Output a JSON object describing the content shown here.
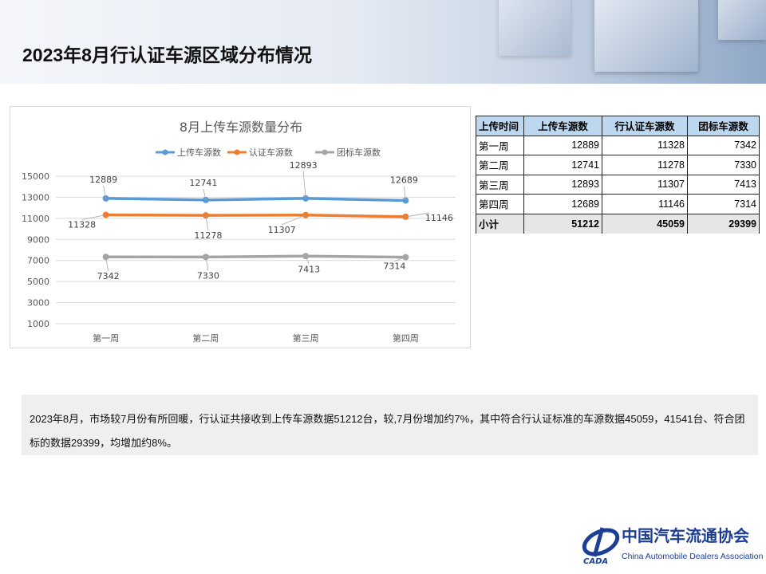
{
  "page": {
    "title": "2023年8月行认证车源区域分布情况"
  },
  "chart_data": {
    "type": "line",
    "title": "8月上传车源数量分布",
    "categories": [
      "第一周",
      "第二周",
      "第三周",
      "第四周"
    ],
    "series": [
      {
        "name": "上传车源数",
        "values": [
          12889,
          12741,
          12893,
          12689
        ],
        "color": "#5b9bd5"
      },
      {
        "name": "认证车源数",
        "values": [
          11328,
          11278,
          11307,
          11146
        ],
        "color": "#ed7d31"
      },
      {
        "name": "团标车源数",
        "values": [
          7342,
          7330,
          7413,
          7314
        ],
        "color": "#a5a5a5"
      }
    ],
    "yticks": [
      "15000",
      "13000",
      "11000",
      "9000",
      "7000",
      "5000",
      "3000",
      "1000"
    ],
    "ylim": [
      1000,
      15000
    ],
    "grid": true,
    "legend": "top"
  },
  "table": {
    "headers": [
      "上传时间",
      "上传车源数",
      "行认证车源数",
      "团标车源数"
    ],
    "rows": [
      [
        "第一周",
        "12889",
        "11328",
        "7342"
      ],
      [
        "第二周",
        "12741",
        "11278",
        "7330"
      ],
      [
        "第三周",
        "12893",
        "11307",
        "7413"
      ],
      [
        "第四周",
        "12689",
        "11146",
        "7314"
      ]
    ],
    "total": [
      "小计",
      "51212",
      "45059",
      "29399"
    ]
  },
  "note": {
    "text": "2023年8月，市场较7月份有所回暖，行认证共接收到上传车源数据51212台，较,7月份增加约7%，其中符合行认证标准的车源数据45059，41541台、符合团标的数据29399，均增加约8%。"
  },
  "logo": {
    "cn": "中国汽车流通协会",
    "en": "China Automobile Dealers Association",
    "mark": "CADA"
  }
}
